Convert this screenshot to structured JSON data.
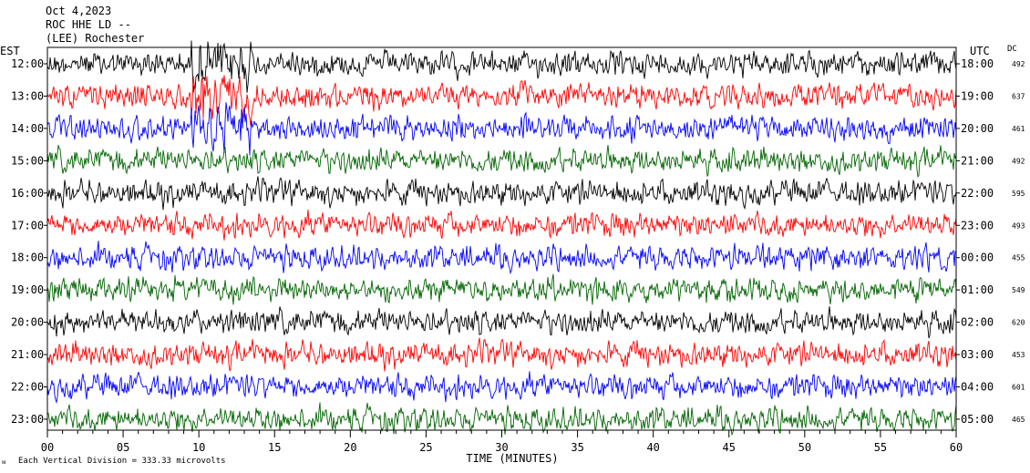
{
  "header": {
    "date": "Oct 4,2023",
    "station": "ROC HHE LD --",
    "location": "(LEE) Rochester"
  },
  "left_axis_label": "EST",
  "right_axis_label": "UTC",
  "dc_label": "DC",
  "footer": {
    "scale_note": "Each Vertical Division =  333.33 microvolts"
  },
  "colors": {
    "trace_cycle": [
      "#000000",
      "#ff0000",
      "#0000ff",
      "#006400"
    ],
    "axis": "#000000",
    "background": "#ffffff"
  },
  "chart_data": {
    "type": "line",
    "description_kind": "helicorder seismogram",
    "x_axis": {
      "label": "TIME (MINUTES)",
      "range": [
        0,
        60
      ],
      "ticks": [
        "00",
        "05",
        "10",
        "15",
        "20",
        "25",
        "30",
        "35",
        "40",
        "45",
        "50",
        "55",
        "60"
      ]
    },
    "rows": [
      {
        "local": "12:00",
        "utc": "18:00",
        "dc": "492",
        "color_index": 0
      },
      {
        "local": "13:00",
        "utc": "19:00",
        "dc": "637",
        "color_index": 1
      },
      {
        "local": "14:00",
        "utc": "20:00",
        "dc": "461",
        "color_index": 2
      },
      {
        "local": "15:00",
        "utc": "21:00",
        "dc": "492",
        "color_index": 3
      },
      {
        "local": "16:00",
        "utc": "22:00",
        "dc": "595",
        "color_index": 0
      },
      {
        "local": "17:00",
        "utc": "23:00",
        "dc": "493",
        "color_index": 1
      },
      {
        "local": "18:00",
        "utc": "00:00",
        "dc": "455",
        "color_index": 2
      },
      {
        "local": "19:00",
        "utc": "01:00",
        "dc": "549",
        "color_index": 3
      },
      {
        "local": "20:00",
        "utc": "02:00",
        "dc": "620",
        "color_index": 0
      },
      {
        "local": "21:00",
        "utc": "03:00",
        "dc": "453",
        "color_index": 1
      },
      {
        "local": "22:00",
        "utc": "04:00",
        "dc": "601",
        "color_index": 2
      },
      {
        "local": "23:00",
        "utc": "05:00",
        "dc": "465",
        "color_index": 3
      }
    ]
  }
}
